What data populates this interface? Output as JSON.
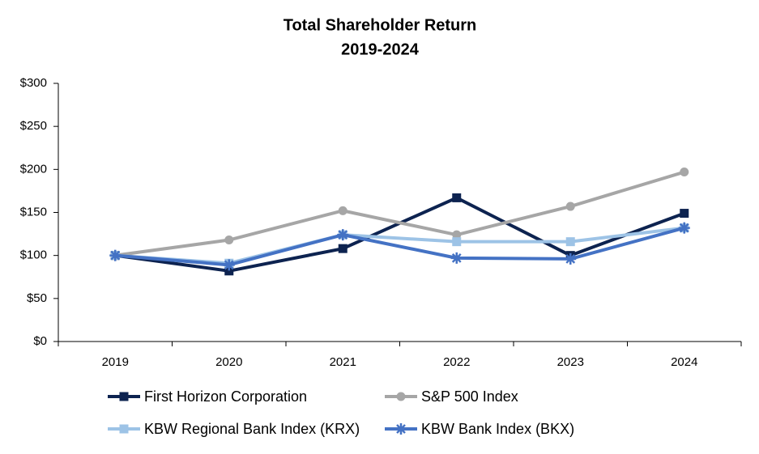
{
  "chart_data": {
    "type": "line",
    "title": "Total Shareholder Return",
    "subtitle": "2019-2024",
    "categories": [
      "2019",
      "2020",
      "2021",
      "2022",
      "2023",
      "2024"
    ],
    "series": [
      {
        "name": "First Horizon Corporation",
        "color": "#0d2350",
        "marker": "square",
        "values": [
          100,
          82,
          108,
          167,
          100,
          149
        ]
      },
      {
        "name": "S&P 500 Index",
        "color": "#a6a6a6",
        "marker": "circle",
        "values": [
          100,
          118,
          152,
          124,
          157,
          197
        ]
      },
      {
        "name": "KBW Regional Bank Index (KRX)",
        "color": "#9dc3e6",
        "marker": "square",
        "values": [
          100,
          91,
          124,
          116,
          116,
          132
        ]
      },
      {
        "name": "KBW Bank Index (BKX)",
        "color": "#4472c4",
        "marker": "asterisk",
        "values": [
          100,
          89,
          124,
          97,
          96,
          132
        ]
      }
    ],
    "ylim": [
      0,
      300
    ],
    "yticks": [
      {
        "value": 0,
        "label": "$0"
      },
      {
        "value": 50,
        "label": "$50"
      },
      {
        "value": 100,
        "label": "$100"
      },
      {
        "value": 150,
        "label": "$150"
      },
      {
        "value": 200,
        "label": "$200"
      },
      {
        "value": 250,
        "label": "$250"
      },
      {
        "value": 300,
        "label": "$300"
      }
    ],
    "grid": false,
    "legend": "bottom"
  }
}
